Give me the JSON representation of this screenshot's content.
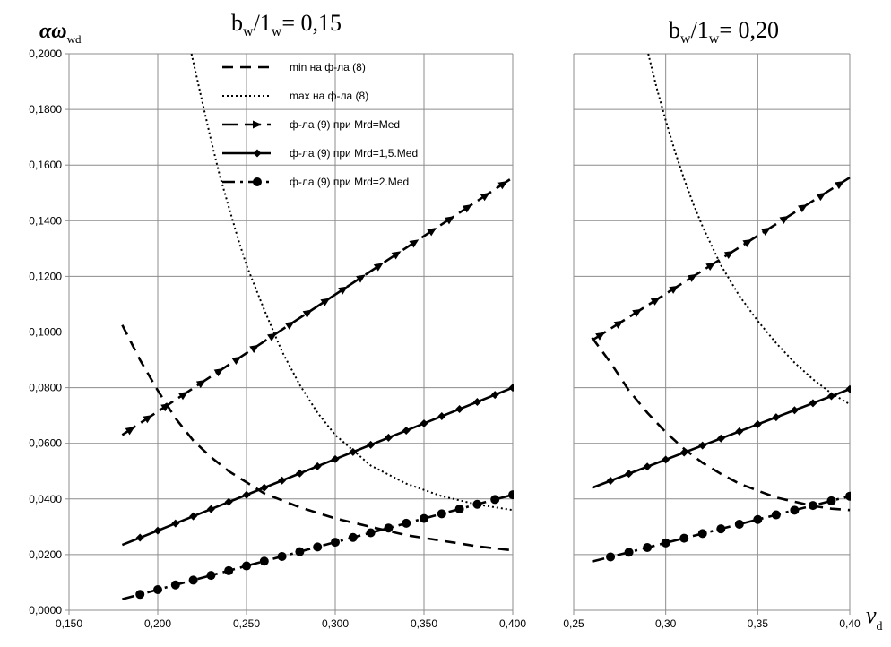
{
  "chart_data": [
    {
      "type": "line",
      "title_main": "b",
      "title_sub1": "w",
      "title_mid": "/1",
      "title_sub2": "w",
      "title_tail": "= 0,15",
      "ylabel_main": "αω",
      "ylabel_sub": "wd",
      "xlim": [
        0.15,
        0.4
      ],
      "ylim": [
        0.0,
        0.2
      ],
      "x_ticks": [
        "0,150",
        "0,200",
        "0,250",
        "0,300",
        "0,350",
        "0,400"
      ],
      "y_ticks": [
        "0,0000",
        "0,0200",
        "0,0400",
        "0,0600",
        "0,0800",
        "0,1000",
        "0,1200",
        "0,1400",
        "0,1600",
        "0,1800",
        "0,2000"
      ],
      "grid": true,
      "legend_position": "top-left",
      "series": [
        {
          "name": "min на ф-ла (8)",
          "style": "dash",
          "marker": "none",
          "x": [
            0.18,
            0.19,
            0.2,
            0.21,
            0.22,
            0.23,
            0.24,
            0.25,
            0.26,
            0.28,
            0.3,
            0.32,
            0.34,
            0.36,
            0.38,
            0.4
          ],
          "y": [
            0.1025,
            0.09,
            0.079,
            0.069,
            0.061,
            0.055,
            0.05,
            0.046,
            0.042,
            0.037,
            0.033,
            0.03,
            0.027,
            0.025,
            0.023,
            0.0215
          ]
        },
        {
          "name": "max на ф-ла (8)",
          "style": "dot",
          "marker": "none",
          "x": [
            0.219,
            0.225,
            0.23,
            0.235,
            0.24,
            0.245,
            0.25,
            0.26,
            0.27,
            0.28,
            0.29,
            0.3,
            0.32,
            0.34,
            0.36,
            0.38,
            0.4
          ],
          "y": [
            0.2,
            0.183,
            0.169,
            0.156,
            0.145,
            0.134,
            0.124,
            0.108,
            0.093,
            0.081,
            0.071,
            0.063,
            0.052,
            0.0455,
            0.041,
            0.038,
            0.036
          ]
        },
        {
          "name": "ф-ла (9) при Mrd=Med",
          "style": "longdash",
          "marker": "triangle",
          "x_start": 0.18,
          "x_end": 0.4,
          "y_start": 0.063,
          "y_end": 0.1555,
          "marker_x": [
            0.185,
            0.195,
            0.205,
            0.215,
            0.225,
            0.235,
            0.245,
            0.255,
            0.265,
            0.275,
            0.285,
            0.295,
            0.305,
            0.315,
            0.325,
            0.335,
            0.345,
            0.355,
            0.365,
            0.375,
            0.385,
            0.395
          ]
        },
        {
          "name": "ф-ла (9) при Mrd=1,5.Med",
          "style": "solid",
          "marker": "diamond",
          "x_start": 0.18,
          "x_end": 0.4,
          "y_start": 0.0235,
          "y_end": 0.08,
          "marker_x": [
            0.19,
            0.2,
            0.21,
            0.22,
            0.23,
            0.24,
            0.25,
            0.26,
            0.27,
            0.28,
            0.29,
            0.3,
            0.31,
            0.32,
            0.33,
            0.34,
            0.35,
            0.36,
            0.37,
            0.38,
            0.39,
            0.4
          ]
        },
        {
          "name": "ф-ла (9) при Mrd=2.Med",
          "style": "dashdot",
          "marker": "circle",
          "x_start": 0.18,
          "x_end": 0.4,
          "y_start": 0.004,
          "y_end": 0.0415,
          "marker_x": [
            0.19,
            0.2,
            0.21,
            0.22,
            0.23,
            0.24,
            0.25,
            0.26,
            0.27,
            0.28,
            0.29,
            0.3,
            0.31,
            0.32,
            0.33,
            0.34,
            0.35,
            0.36,
            0.37,
            0.38,
            0.39,
            0.4
          ]
        }
      ]
    },
    {
      "type": "line",
      "title_main": "b",
      "title_sub1": "w",
      "title_mid": "/1",
      "title_sub2": "w",
      "title_tail": "= 0,20",
      "xlabel_main": "ν",
      "xlabel_sub": "d",
      "xlim": [
        0.25,
        0.4
      ],
      "ylim": [
        0.0,
        0.2
      ],
      "x_ticks": [
        "0,25",
        "0,30",
        "0,35",
        "0,40"
      ],
      "grid": true,
      "series": [
        {
          "name": "min на ф-ла (8)",
          "style": "dash",
          "marker": "none",
          "x": [
            0.26,
            0.27,
            0.28,
            0.29,
            0.3,
            0.31,
            0.32,
            0.33,
            0.34,
            0.35,
            0.36,
            0.37,
            0.38,
            0.39,
            0.4
          ],
          "y": [
            0.098,
            0.089,
            0.079,
            0.071,
            0.064,
            0.058,
            0.053,
            0.049,
            0.0455,
            0.043,
            0.0405,
            0.039,
            0.0375,
            0.0365,
            0.036
          ]
        },
        {
          "name": "max на ф-ла (8)",
          "style": "dot",
          "marker": "none",
          "x": [
            0.2905,
            0.295,
            0.3,
            0.305,
            0.31,
            0.315,
            0.32,
            0.33,
            0.34,
            0.35,
            0.36,
            0.37,
            0.38,
            0.39,
            0.4
          ],
          "y": [
            0.2,
            0.188,
            0.176,
            0.165,
            0.155,
            0.146,
            0.138,
            0.124,
            0.113,
            0.104,
            0.096,
            0.089,
            0.083,
            0.078,
            0.074
          ]
        },
        {
          "name": "ф-ла (9) при Mrd=Med",
          "style": "longdash",
          "marker": "triangle",
          "x_start": 0.26,
          "x_end": 0.4,
          "y_start": 0.097,
          "y_end": 0.1555,
          "marker_x": [
            0.265,
            0.275,
            0.285,
            0.295,
            0.305,
            0.315,
            0.325,
            0.335,
            0.345,
            0.355,
            0.365,
            0.375,
            0.385,
            0.395
          ]
        },
        {
          "name": "ф-ла (9) при Mrd=1,5.Med",
          "style": "solid",
          "marker": "diamond",
          "x_start": 0.26,
          "x_end": 0.4,
          "y_start": 0.044,
          "y_end": 0.0795,
          "marker_x": [
            0.27,
            0.28,
            0.29,
            0.3,
            0.31,
            0.32,
            0.33,
            0.34,
            0.35,
            0.36,
            0.37,
            0.38,
            0.39,
            0.4
          ]
        },
        {
          "name": "ф-ла (9) при Mrd=2.Med",
          "style": "dashdot",
          "marker": "circle",
          "x_start": 0.26,
          "x_end": 0.4,
          "y_start": 0.0175,
          "y_end": 0.041,
          "marker_x": [
            0.27,
            0.28,
            0.29,
            0.3,
            0.31,
            0.32,
            0.33,
            0.34,
            0.35,
            0.36,
            0.37,
            0.38,
            0.39,
            0.4
          ]
        }
      ]
    }
  ]
}
